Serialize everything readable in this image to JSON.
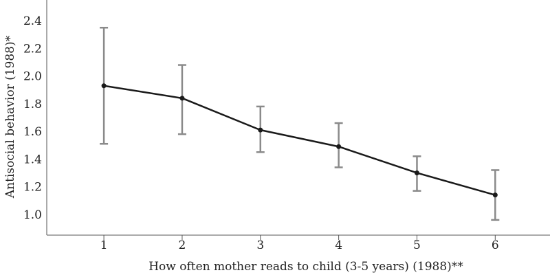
{
  "chart_data": {
    "type": "line",
    "xlabel": "How often mother reads to child (3-5 years) (1988)**",
    "ylabel": "Antisocial behavior (1988)*",
    "x": [
      1,
      2,
      3,
      4,
      5,
      6
    ],
    "x_tick_labels": [
      "1",
      "2",
      "3",
      "4",
      "5",
      "6"
    ],
    "y_tick_labels": [
      "1.0",
      "1.2",
      "1.4",
      "1.6",
      "1.8",
      "2.0",
      "2.2",
      "2.4"
    ],
    "y_ticks": [
      1.0,
      1.2,
      1.4,
      1.6,
      1.8,
      2.0,
      2.2,
      2.4
    ],
    "xlim": [
      0.27,
      6.7
    ],
    "ylim": [
      0.85,
      2.55
    ],
    "grid": false,
    "series": [
      {
        "values": [
          1.93,
          1.84,
          1.61,
          1.49,
          1.3,
          1.14
        ],
        "error_low": [
          1.51,
          1.58,
          1.45,
          1.34,
          1.17,
          0.96
        ],
        "error_high": [
          2.35,
          2.08,
          1.78,
          1.66,
          1.42,
          1.32
        ]
      }
    ],
    "colors": {
      "line": "#1a1a1a",
      "marker": "#1a1a1a",
      "error_bar": "#8a8a8a",
      "axis": "#555555"
    }
  }
}
